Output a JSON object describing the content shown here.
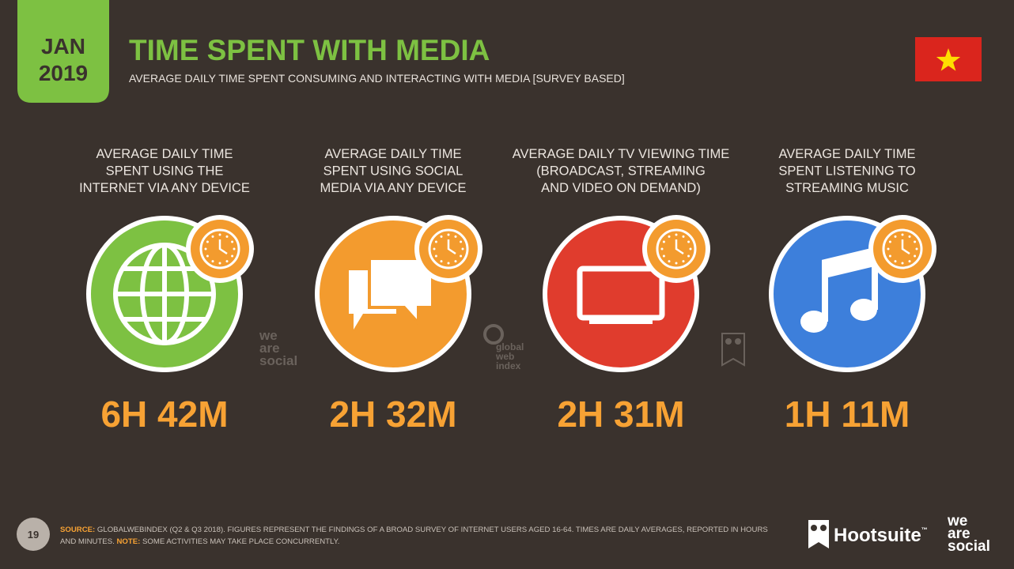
{
  "badge": {
    "month": "JAN",
    "year": "2019"
  },
  "header": {
    "title": "TIME SPENT WITH MEDIA",
    "subtitle": "AVERAGE DAILY TIME SPENT CONSUMING AND INTERACTING WITH MEDIA [SURVEY BASED]"
  },
  "stats": [
    {
      "label": [
        "AVERAGE DAILY TIME",
        "SPENT USING THE",
        "INTERNET VIA ANY DEVICE"
      ],
      "value": "6H 42M"
    },
    {
      "label": [
        "AVERAGE DAILY TIME",
        "SPENT USING SOCIAL",
        "MEDIA VIA ANY DEVICE"
      ],
      "value": "2H 32M"
    },
    {
      "label": [
        "AVERAGE DAILY TV VIEWING TIME",
        "(BROADCAST, STREAMING",
        "AND VIDEO ON DEMAND)"
      ],
      "value": "2H 31M"
    },
    {
      "label": [
        "AVERAGE DAILY TIME",
        "SPENT LISTENING TO",
        "STREAMING MUSIC"
      ],
      "value": "1H 11M"
    }
  ],
  "watermarks": {
    "we_are_social": [
      "we",
      "are",
      "social"
    ],
    "global_web_index": [
      "global",
      "web",
      "index"
    ]
  },
  "footer": {
    "page": "19",
    "source_label": "SOURCE:",
    "source_text": "GLOBALWEBINDEX (Q2 & Q3 2018). FIGURES REPRESENT THE FINDINGS OF A BROAD SURVEY OF INTERNET USERS AGED 16-64. TIMES ARE DAILY AVERAGES, REPORTED IN HOURS",
    "source_text_2": "AND MINUTES.",
    "note_label": "NOTE:",
    "note_text": "SOME ACTIVITIES MAY TAKE PLACE CONCURRENTLY.",
    "brand": "Hootsuite",
    "brand_mark": "™",
    "partner": [
      "we",
      "are",
      "social"
    ]
  }
}
